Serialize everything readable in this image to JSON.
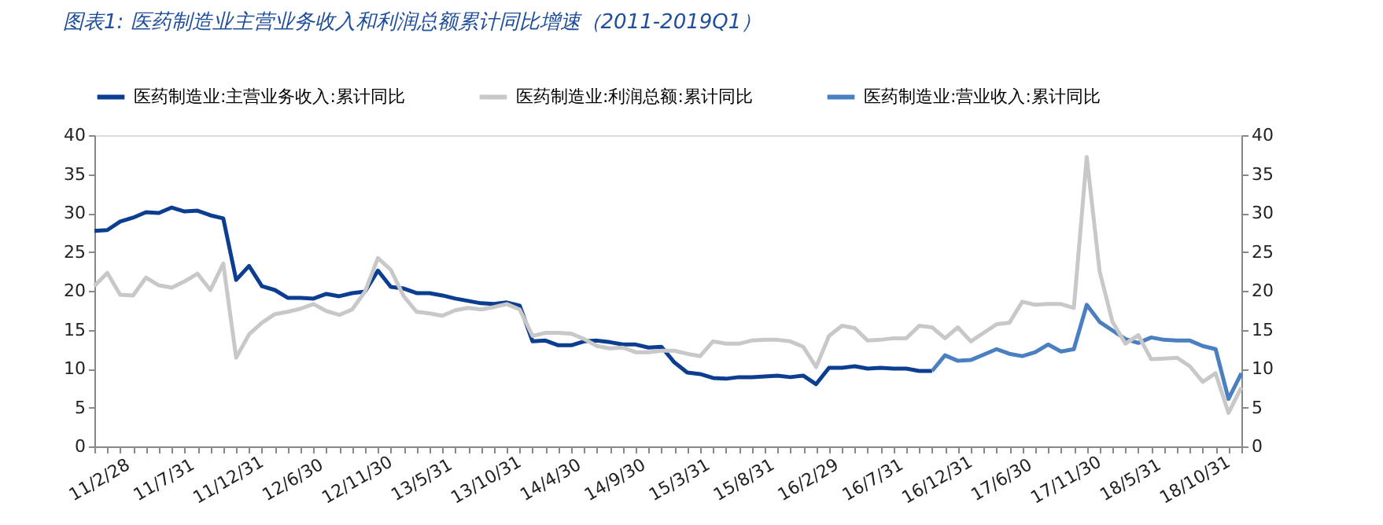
{
  "chart_data": {
    "type": "line",
    "title": "图表1:  医药制造业主营业务收入和利润总额累计同比增速（2011-2019Q1）",
    "categories": [
      "11/2/28",
      null,
      null,
      null,
      null,
      "11/7/31",
      null,
      null,
      null,
      null,
      "11/12/31",
      null,
      null,
      null,
      null,
      "12/6/30",
      null,
      null,
      null,
      null,
      "12/11/30",
      null,
      null,
      null,
      null,
      "13/5/31",
      null,
      null,
      null,
      null,
      "13/10/31",
      null,
      null,
      null,
      null,
      "14/4/30",
      null,
      null,
      null,
      null,
      "14/9/30",
      null,
      null,
      null,
      null,
      "15/3/31",
      null,
      null,
      null,
      null,
      "15/8/31",
      null,
      null,
      null,
      null,
      "16/2/29",
      null,
      null,
      null,
      null,
      "16/7/31",
      null,
      null,
      null,
      null,
      "16/12/31",
      null,
      null,
      null,
      null,
      "17/6/30",
      null,
      null,
      null,
      null,
      "17/11/30",
      null,
      null,
      null,
      null,
      "18/5/31",
      null,
      null,
      null,
      null,
      "18/10/31",
      null,
      null,
      null,
      null
    ],
    "series": [
      {
        "name": "医药制造业:主营业务收入:累计同比",
        "color": "#0b3d91",
        "values": [
          27.7,
          27.8,
          28.9,
          29.4,
          30.1,
          30.0,
          30.7,
          30.2,
          30.3,
          29.7,
          29.3,
          21.4,
          23.2,
          20.6,
          20.1,
          19.1,
          19.1,
          19.0,
          19.6,
          19.3,
          19.7,
          19.9,
          22.6,
          20.5,
          20.3,
          19.7,
          19.7,
          19.4,
          19.0,
          18.7,
          18.4,
          18.3,
          18.5,
          18.1,
          13.5,
          13.6,
          13.0,
          13.0,
          13.5,
          13.6,
          13.4,
          13.1,
          13.1,
          12.7,
          12.8,
          10.8,
          9.5,
          9.3,
          8.8,
          8.7,
          8.9,
          8.9,
          9.0,
          9.1,
          8.9,
          9.1,
          8.0,
          10.1,
          10.1,
          10.3,
          10.0,
          10.1,
          10.0,
          10.0,
          9.7,
          9.7,
          null,
          null,
          null,
          null,
          null,
          null,
          null,
          null,
          null,
          null,
          null,
          null,
          null,
          null,
          null,
          null,
          null,
          null,
          null,
          null,
          null,
          null,
          null,
          null
        ]
      },
      {
        "name": "医药制造业:利润总额:累计同比",
        "color": "#c8c8c8",
        "axis": "y2",
        "values": [
          20.6,
          22.3,
          19.5,
          19.4,
          21.7,
          20.7,
          20.4,
          21.2,
          22.2,
          20.1,
          23.5,
          11.4,
          14.4,
          15.9,
          17.0,
          17.3,
          17.7,
          18.3,
          17.4,
          16.9,
          17.6,
          19.9,
          24.2,
          22.7,
          19.3,
          17.3,
          17.1,
          16.8,
          17.5,
          17.8,
          17.6,
          17.9,
          18.3,
          17.6,
          14.2,
          14.6,
          14.6,
          14.5,
          13.8,
          12.9,
          12.6,
          12.7,
          12.1,
          12.1,
          12.3,
          12.3,
          11.9,
          11.6,
          13.5,
          13.2,
          13.2,
          13.6,
          13.7,
          13.7,
          13.5,
          12.8,
          10.2,
          14.2,
          15.5,
          15.2,
          13.6,
          13.7,
          13.9,
          13.9,
          15.5,
          15.3,
          13.9,
          15.3,
          13.5,
          14.6,
          15.7,
          15.9,
          18.6,
          18.2,
          18.3,
          18.3,
          17.8,
          37.2,
          22.5,
          16.0,
          13.2,
          14.3,
          11.2,
          11.3,
          11.4,
          10.3,
          8.3,
          9.4,
          4.3,
          7.6
        ]
      },
      {
        "name": "医药制造业:营业收入:累计同比",
        "color": "#4a7fc1",
        "values": [
          null,
          null,
          null,
          null,
          null,
          null,
          null,
          null,
          null,
          null,
          null,
          null,
          null,
          null,
          null,
          null,
          null,
          null,
          null,
          null,
          null,
          null,
          null,
          null,
          null,
          null,
          null,
          null,
          null,
          null,
          null,
          null,
          null,
          null,
          null,
          null,
          null,
          null,
          null,
          null,
          null,
          null,
          null,
          null,
          null,
          null,
          null,
          null,
          null,
          null,
          null,
          null,
          null,
          null,
          null,
          null,
          null,
          null,
          null,
          null,
          null,
          null,
          null,
          null,
          null,
          9.7,
          11.7,
          11.0,
          11.1,
          11.8,
          12.5,
          11.9,
          11.6,
          12.1,
          13.1,
          12.2,
          12.5,
          18.2,
          16.0,
          14.9,
          13.8,
          13.3,
          14.0,
          13.7,
          13.6,
          13.6,
          12.9,
          12.5,
          6.1,
          9.4
        ]
      }
    ],
    "ylim": [
      0,
      40
    ],
    "yticks": [
      0,
      5,
      10,
      15,
      20,
      25,
      30,
      35,
      40
    ],
    "y2lim": [
      0,
      40
    ],
    "y2ticks": [
      0,
      5,
      10,
      15,
      20,
      25,
      30,
      35,
      40
    ],
    "grid": false,
    "legend": "top",
    "line_style": "solid",
    "marker": "none"
  }
}
